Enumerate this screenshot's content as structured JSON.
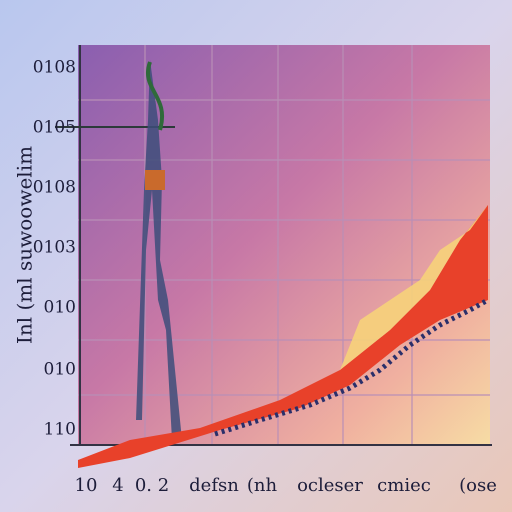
{
  "y_axis_title": "Inl (ml suwoowelim",
  "y_labels": [
    "0108",
    "0105",
    "0108",
    "0103",
    "010",
    "010",
    "110"
  ],
  "x_labels": [
    "10",
    "4",
    "0. 2",
    "defsn",
    "(nh",
    "ocleser",
    "cmiec",
    "(ose"
  ]
}
